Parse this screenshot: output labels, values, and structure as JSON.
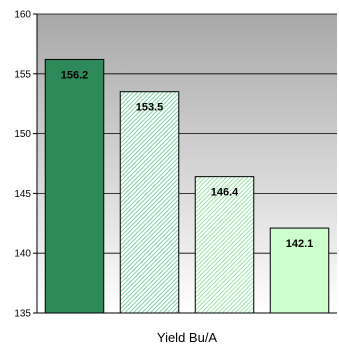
{
  "chart_data": {
    "type": "bar",
    "title": "",
    "xlabel": "Yield Bu/A",
    "ylabel": "",
    "ylim": [
      135,
      160
    ],
    "yticks": [
      135,
      140,
      145,
      150,
      155,
      160
    ],
    "grid": true,
    "legend": "none",
    "categories": [
      "",
      "",
      "",
      ""
    ],
    "values": [
      156.2,
      153.5,
      146.4,
      142.1
    ],
    "labels": [
      "156.2",
      "153.5",
      "146.4",
      "142.1"
    ],
    "colors": [
      "#2f8a5a",
      "#7fd4a0",
      "#9be6a8",
      "#ccffcc"
    ],
    "fill_patterns": [
      "solid",
      "diagonal-hatch",
      "diagonal-hatch",
      "solid"
    ],
    "background_gradient": [
      "#a8a8a8",
      "#ffffff"
    ]
  }
}
